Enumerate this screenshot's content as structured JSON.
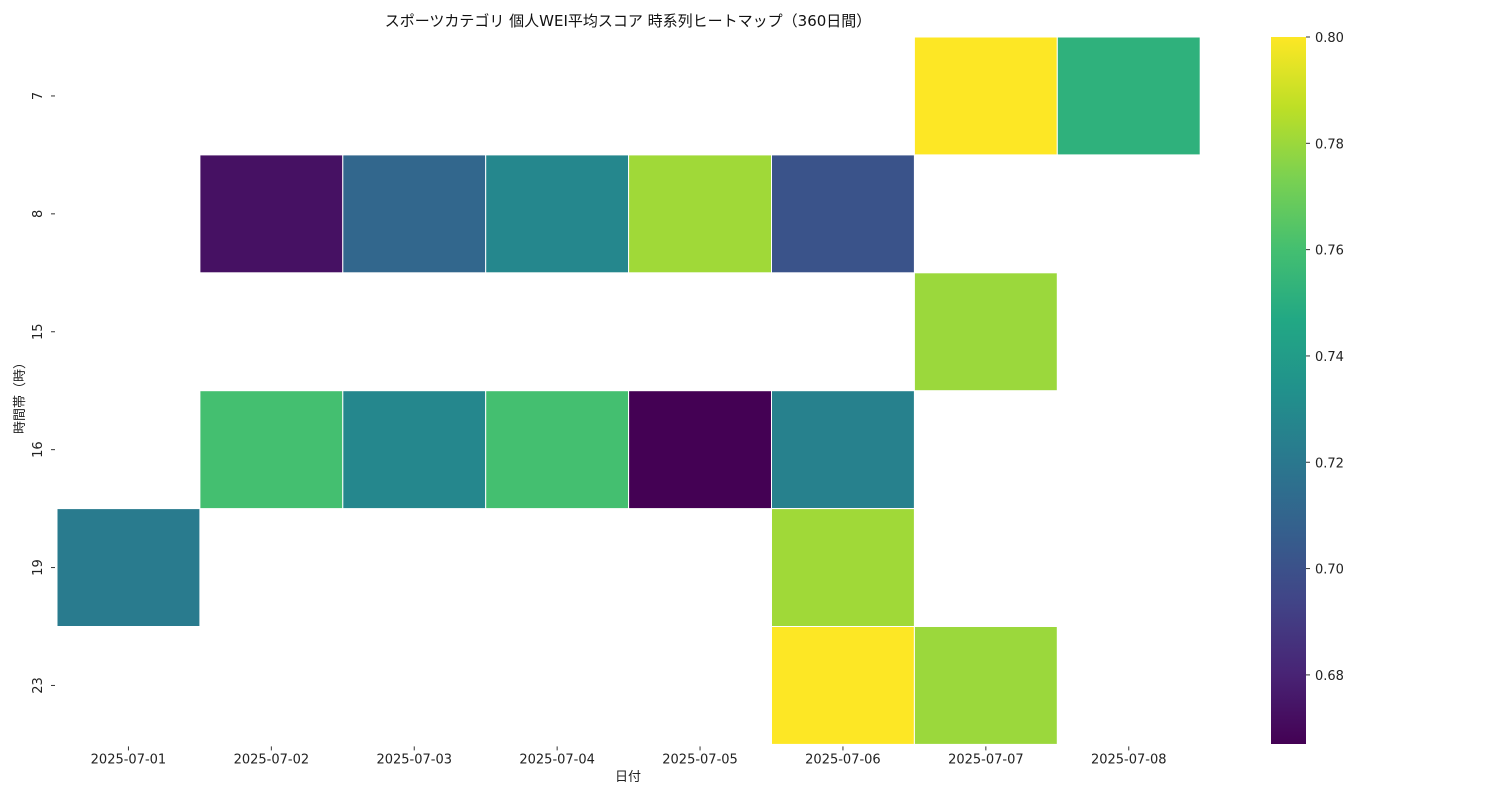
{
  "chart_data": {
    "type": "heatmap",
    "title": "スポーツカテゴリ 個人WEI平均スコア 時系列ヒートマップ（360日間）",
    "xlabel": "日付",
    "ylabel": "時間帯（時）",
    "x": [
      "2025-07-01",
      "2025-07-02",
      "2025-07-03",
      "2025-07-04",
      "2025-07-05",
      "2025-07-06",
      "2025-07-07",
      "2025-07-08"
    ],
    "y": [
      "7",
      "8",
      "15",
      "16",
      "19",
      "23"
    ],
    "values": [
      [
        null,
        null,
        null,
        null,
        null,
        null,
        0.8,
        0.752
      ],
      [
        null,
        0.673,
        0.711,
        0.728,
        0.781,
        0.701,
        null,
        null
      ],
      [
        null,
        null,
        null,
        null,
        null,
        null,
        0.78,
        null
      ],
      [
        null,
        0.76,
        0.728,
        0.76,
        0.667,
        0.725,
        null,
        null
      ],
      [
        0.722,
        null,
        null,
        null,
        null,
        0.781,
        null,
        null
      ],
      [
        null,
        null,
        null,
        null,
        null,
        0.8,
        0.78,
        null
      ]
    ],
    "colorscale": "viridis",
    "colorbar": {
      "range": [
        0.667,
        0.8
      ],
      "ticks": [
        "0.68",
        "0.70",
        "0.72",
        "0.74",
        "0.76",
        "0.78",
        "0.80"
      ]
    },
    "grid": false,
    "legend": "colorbar-right"
  }
}
